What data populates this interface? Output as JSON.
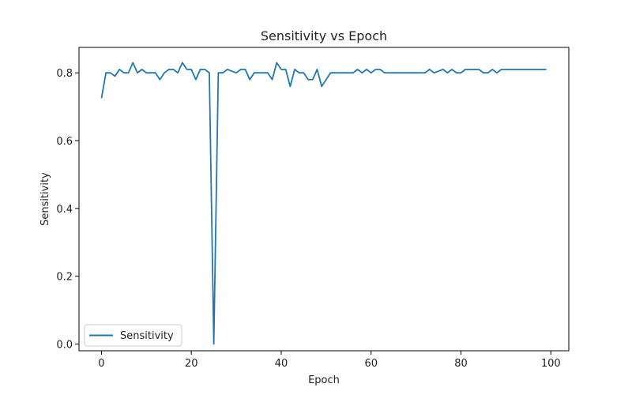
{
  "chart_data": {
    "type": "line",
    "title": "Sensitivity vs Epoch",
    "xlabel": "Epoch",
    "ylabel": "Sensitivity",
    "xlim": [
      -5,
      104
    ],
    "ylim": [
      -0.02,
      0.875
    ],
    "xticks": [
      0,
      20,
      40,
      60,
      80,
      100
    ],
    "yticks": [
      0.0,
      0.2,
      0.4,
      0.6,
      0.8
    ],
    "xtick_labels": [
      "0",
      "20",
      "40",
      "60",
      "80",
      "100"
    ],
    "ytick_labels": [
      "0.0",
      "0.2",
      "0.4",
      "0.6",
      "0.8"
    ],
    "grid": false,
    "legend": {
      "position": "lower-left",
      "entries": [
        "Sensitivity"
      ]
    },
    "series": [
      {
        "name": "Sensitivity",
        "color": "#1f77b4",
        "x": [
          0,
          1,
          2,
          3,
          4,
          5,
          6,
          7,
          8,
          9,
          10,
          11,
          12,
          13,
          14,
          15,
          16,
          17,
          18,
          19,
          20,
          21,
          22,
          23,
          24,
          25,
          26,
          27,
          28,
          29,
          30,
          31,
          32,
          33,
          34,
          35,
          36,
          37,
          38,
          39,
          40,
          41,
          42,
          43,
          44,
          45,
          46,
          47,
          48,
          49,
          50,
          51,
          52,
          53,
          54,
          55,
          56,
          57,
          58,
          59,
          60,
          61,
          62,
          63,
          64,
          65,
          66,
          67,
          68,
          69,
          70,
          71,
          72,
          73,
          74,
          75,
          76,
          77,
          78,
          79,
          80,
          81,
          82,
          83,
          84,
          85,
          86,
          87,
          88,
          89,
          90,
          91,
          92,
          93,
          94,
          95,
          96,
          97,
          98,
          99
        ],
        "values": [
          0.725,
          0.8,
          0.8,
          0.79,
          0.81,
          0.8,
          0.8,
          0.83,
          0.8,
          0.81,
          0.8,
          0.8,
          0.8,
          0.78,
          0.8,
          0.81,
          0.81,
          0.8,
          0.83,
          0.81,
          0.81,
          0.78,
          0.81,
          0.81,
          0.8,
          0.0,
          0.8,
          0.8,
          0.81,
          0.805,
          0.8,
          0.81,
          0.81,
          0.78,
          0.8,
          0.8,
          0.8,
          0.8,
          0.78,
          0.83,
          0.81,
          0.81,
          0.76,
          0.81,
          0.8,
          0.8,
          0.78,
          0.78,
          0.81,
          0.76,
          0.78,
          0.8,
          0.8,
          0.8,
          0.8,
          0.8,
          0.8,
          0.81,
          0.8,
          0.81,
          0.8,
          0.81,
          0.81,
          0.8,
          0.8,
          0.8,
          0.8,
          0.8,
          0.8,
          0.8,
          0.8,
          0.8,
          0.8,
          0.81,
          0.8,
          0.805,
          0.81,
          0.8,
          0.81,
          0.8,
          0.8,
          0.81,
          0.81,
          0.81,
          0.81,
          0.8,
          0.8,
          0.81,
          0.8,
          0.81,
          0.81,
          0.81,
          0.81,
          0.81,
          0.81,
          0.81,
          0.81,
          0.81,
          0.81,
          0.81
        ]
      }
    ]
  }
}
